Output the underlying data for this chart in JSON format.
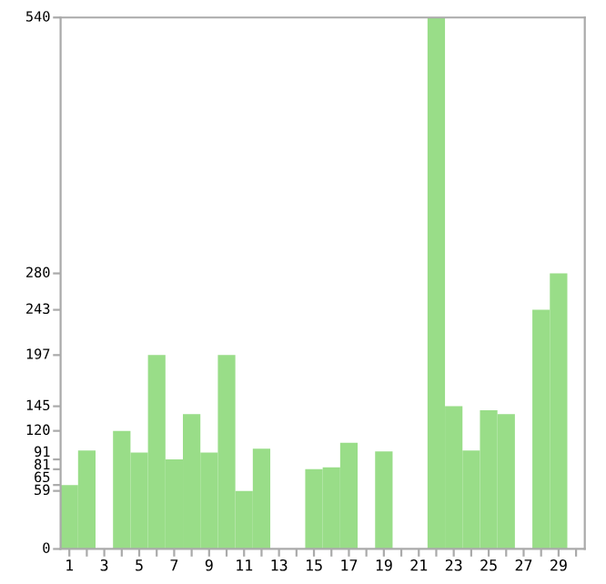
{
  "chart_data": {
    "type": "bar",
    "categories": [
      "1",
      null,
      "3",
      null,
      "5",
      null,
      "7",
      null,
      "9",
      null,
      "11",
      null,
      "13",
      null,
      "15",
      null,
      "17",
      null,
      "19",
      null,
      "21",
      null,
      "23",
      null,
      "25",
      null,
      "27",
      null,
      "29",
      null
    ],
    "values": [
      65,
      100,
      0,
      120,
      98,
      197,
      91,
      137,
      98,
      197,
      59,
      102,
      0,
      0,
      81,
      83,
      108,
      0,
      99,
      0,
      0,
      540,
      145,
      100,
      141,
      137,
      0,
      243,
      280,
      0
    ],
    "color": "#99dd88",
    "ylim": [
      0,
      540
    ],
    "yticks": [
      0,
      59,
      65,
      81,
      91,
      120,
      145,
      197,
      243,
      280,
      540
    ],
    "grid": false
  }
}
